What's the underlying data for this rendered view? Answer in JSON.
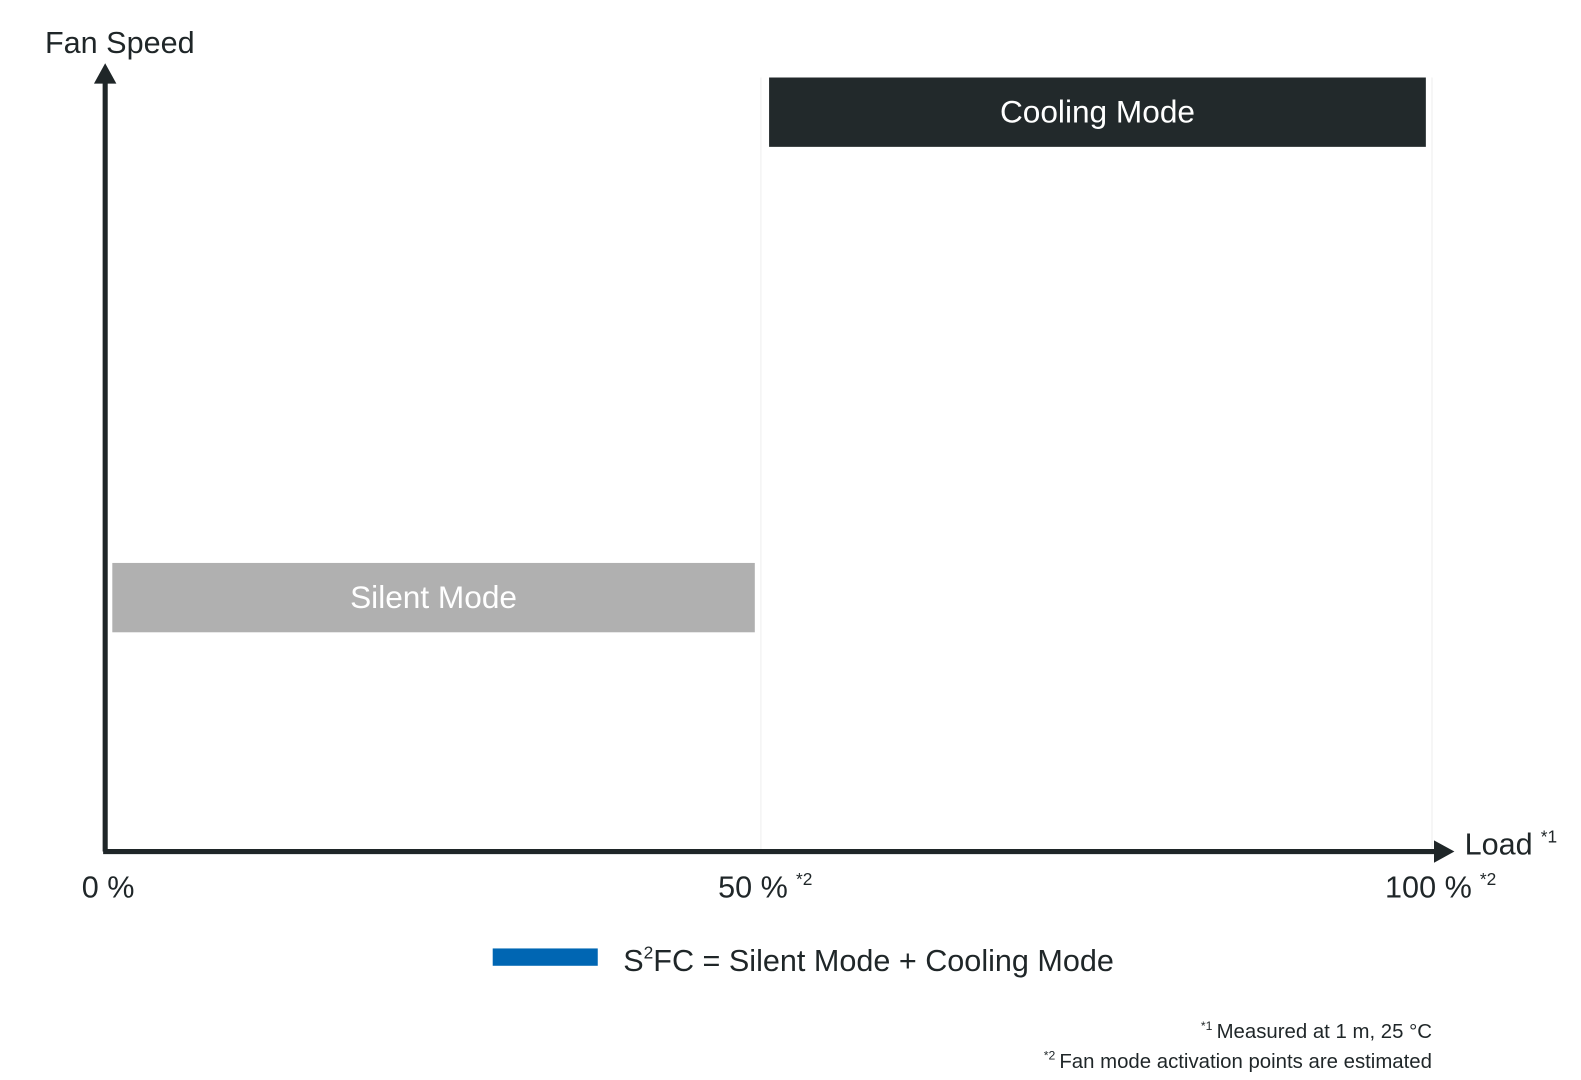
{
  "y_axis": {
    "label": "Fan Speed"
  },
  "x_axis": {
    "label": "Load",
    "note": "*1"
  },
  "ticks": [
    {
      "label": "0 %"
    },
    {
      "label": "50 %",
      "note": "*2"
    },
    {
      "label": "100 %",
      "note": "*2"
    }
  ],
  "modes": [
    {
      "label": "Silent Mode"
    },
    {
      "label": "Cooling Mode"
    }
  ],
  "legend": {
    "prefix": "S",
    "superscript": "2",
    "text": "FC = Silent Mode + Cooling Mode"
  },
  "footnotes": [
    {
      "mark": "*1",
      "text": "Measured at 1 m, 25 °C"
    },
    {
      "mark": "*2",
      "text": "Fan mode activation points are estimated"
    }
  ]
}
